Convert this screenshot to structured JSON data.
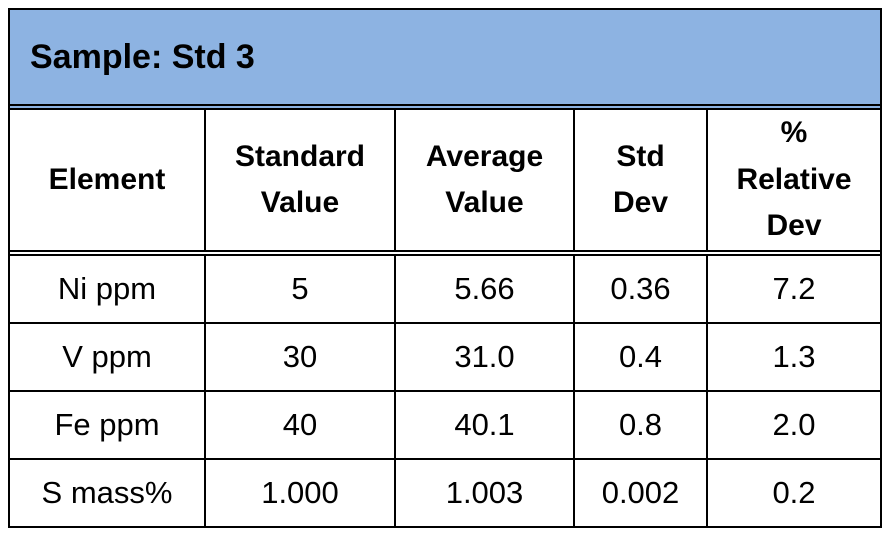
{
  "title": "Sample: Std 3",
  "table": {
    "header": [
      [
        "Element"
      ],
      [
        "Standard",
        "Value"
      ],
      [
        "Average",
        "Value"
      ],
      [
        "Std",
        "Dev"
      ],
      [
        "%",
        "Relative",
        "Dev"
      ]
    ],
    "rows": [
      [
        "Ni ppm",
        "5",
        "5.66",
        "0.36",
        "7.2"
      ],
      [
        "V ppm",
        "30",
        "31.0",
        "0.4",
        "1.3"
      ],
      [
        "Fe ppm",
        "40",
        "40.1",
        "0.8",
        "2.0"
      ],
      [
        "S mass%",
        "1.000",
        "1.003",
        "0.002",
        "0.2"
      ]
    ]
  }
}
